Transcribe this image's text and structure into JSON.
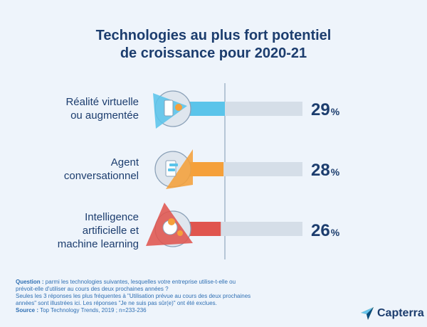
{
  "title": {
    "line1": "Technologies au plus fort potentiel",
    "line2": "de croissance pour 2020-21"
  },
  "chart_data": {
    "type": "bar",
    "title": "Technologies au plus fort potentiel de croissance pour 2020-21",
    "categories": [
      "Réalité virtuelle ou augmentée",
      "Agent conversationnel",
      "Intelligence artificielle et machine learning"
    ],
    "values": [
      29,
      28,
      26
    ],
    "unit": "%",
    "colors": [
      "#5bc4ea",
      "#f5a03a",
      "#e0554e"
    ],
    "track_color": "#d5dee8",
    "icons": [
      "vr-ar-icon",
      "chatbot-icon",
      "ai-brain-icon"
    ]
  },
  "rows": [
    {
      "label_lines": [
        "Réalité virtuelle",
        "ou augmentée"
      ],
      "value": "29",
      "unit": "%"
    },
    {
      "label_lines": [
        "Agent",
        "conversationnel"
      ],
      "value": "28",
      "unit": "%"
    },
    {
      "label_lines": [
        "Intelligence",
        "artificielle et",
        "machine learning"
      ],
      "value": "26",
      "unit": "%"
    }
  ],
  "footnote": {
    "question_label": "Question :",
    "question_text": "parmi les technologies suivantes, lesquelles votre entreprise utilise-t-elle ou",
    "question_text2": "prévoit-elle d'utiliser au cours des deux prochaines années ?",
    "note_line1": "Seules les 3 réponses les plus fréquentes à \"Utilisation prévue au cours des deux prochaines",
    "note_line2": "années\" sont illustrées ici. Les réponses \"Je ne suis pas sûr(e)\" ont été exclues.",
    "source_label": "Source :",
    "source_text": "Top Technology Trends, 2019 ; n=233-236"
  },
  "brand": {
    "name": "Capterra",
    "logo_icon": "capterra-logo-icon"
  }
}
